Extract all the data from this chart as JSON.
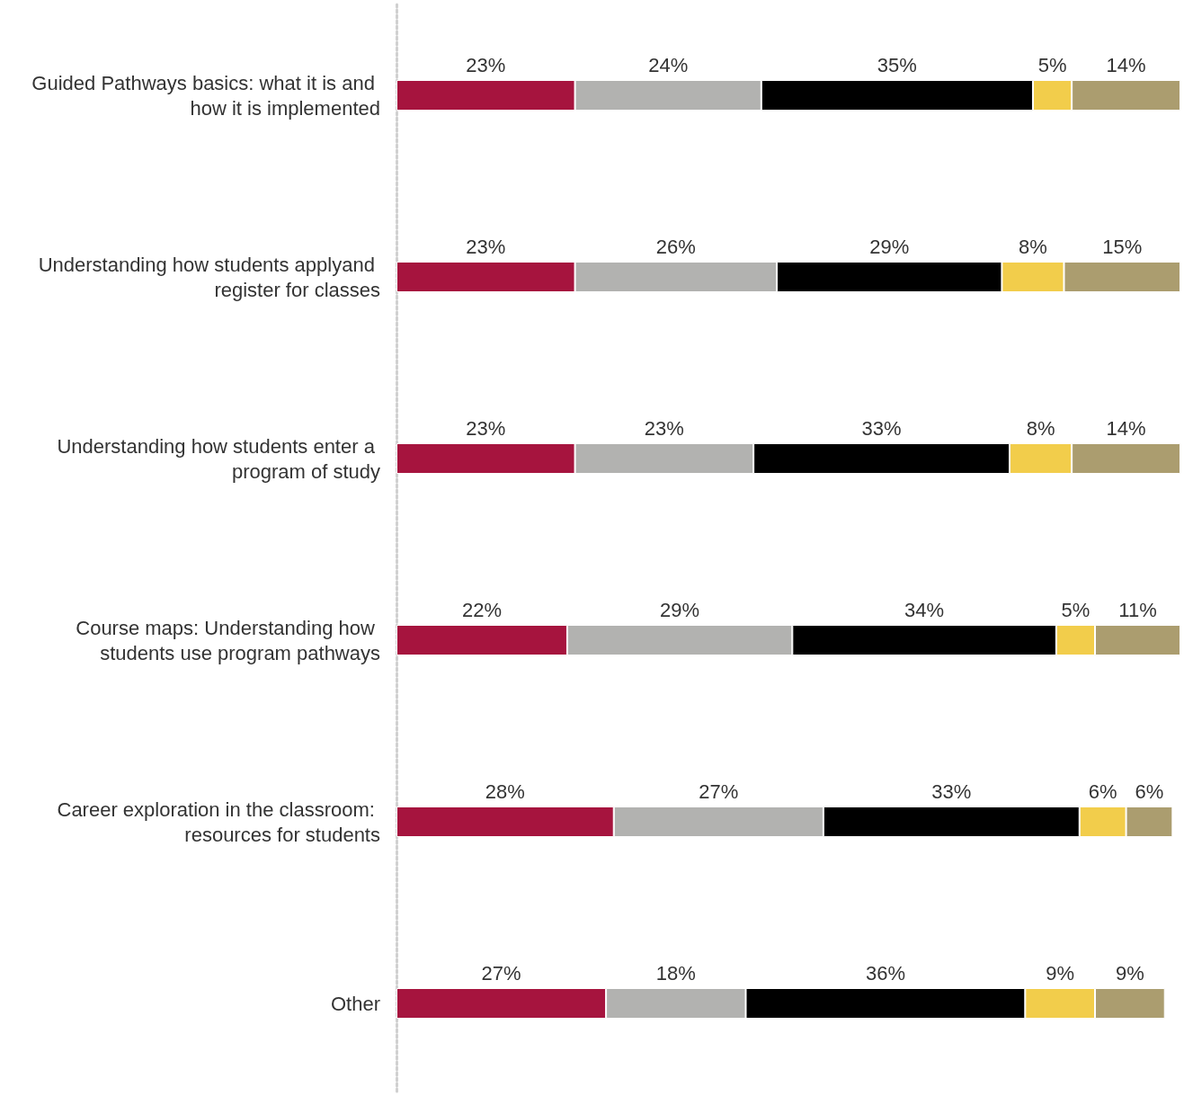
{
  "chart_data": {
    "type": "bar",
    "orientation": "horizontal",
    "stacked": true,
    "categories": [
      "Guided Pathways basics: what it is and how it is implemented",
      "Understanding how students applyand register for classes",
      "Understanding how students enter a program of study",
      "Course maps: Understanding how students use program pathways",
      "Career exploration in the classroom: resources for students",
      "Other"
    ],
    "series": [
      {
        "color": "#a6143e",
        "values": [
          23,
          23,
          23,
          22,
          28,
          27
        ],
        "value_labels": [
          "23%",
          "23%",
          "23%",
          "22%",
          "28%",
          "27%"
        ]
      },
      {
        "color": "#b2b2b0",
        "values": [
          24,
          26,
          23,
          29,
          27,
          18
        ],
        "value_labels": [
          "24%",
          "26%",
          "23%",
          "29%",
          "27%",
          "18%"
        ]
      },
      {
        "color": "#000000",
        "values": [
          35,
          29,
          33,
          34,
          33,
          36
        ],
        "value_labels": [
          "35%",
          "29%",
          "33%",
          "34%",
          "33%",
          "36%"
        ]
      },
      {
        "color": "#f2cd4b",
        "values": [
          5,
          8,
          8,
          5,
          6,
          9
        ],
        "value_labels": [
          "5%",
          "8%",
          "8%",
          "5%",
          "6%",
          "9%"
        ]
      },
      {
        "color": "#ab9d6f",
        "values": [
          14,
          15,
          14,
          11,
          6,
          9
        ],
        "value_labels": [
          "14%",
          "15%",
          "14%",
          "11%",
          "6%",
          "9%"
        ]
      }
    ]
  }
}
